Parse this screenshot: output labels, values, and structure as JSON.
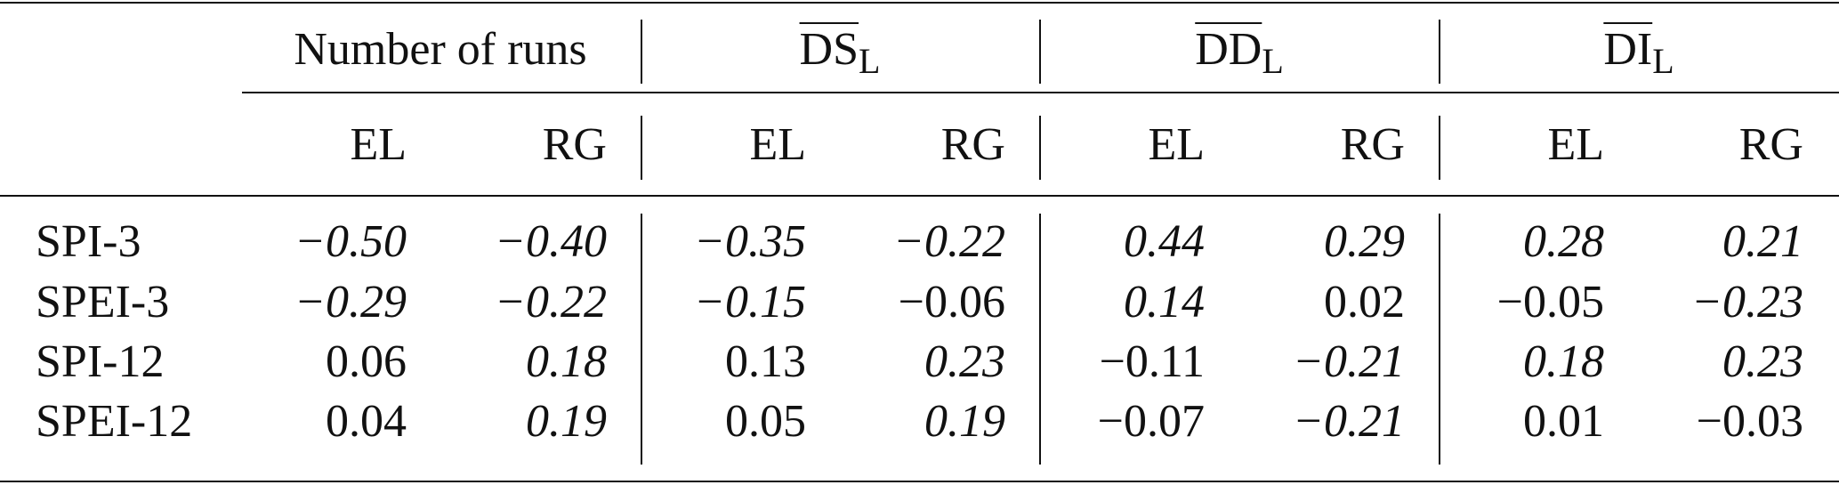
{
  "table": {
    "group_headers": [
      {
        "label": "Number of runs",
        "overline": false,
        "sub": ""
      },
      {
        "label": "DS",
        "overline": true,
        "sub": "L"
      },
      {
        "label": "DD",
        "overline": true,
        "sub": "L"
      },
      {
        "label": "DI",
        "overline": true,
        "sub": "L"
      }
    ],
    "sub_headers": [
      "EL",
      "RG",
      "EL",
      "RG",
      "EL",
      "RG",
      "EL",
      "RG"
    ],
    "rows": [
      {
        "label": "SPI-3",
        "values": [
          "−0.50",
          "−0.40",
          "−0.35",
          "−0.22",
          "0.44",
          "0.29",
          "0.28",
          "0.21"
        ],
        "italic": [
          true,
          true,
          true,
          true,
          true,
          true,
          true,
          true
        ]
      },
      {
        "label": "SPEI-3",
        "values": [
          "−0.29",
          "−0.22",
          "−0.15",
          "−0.06",
          "0.14",
          "0.02",
          "−0.05",
          "−0.23"
        ],
        "italic": [
          true,
          true,
          true,
          false,
          true,
          false,
          false,
          true
        ]
      },
      {
        "label": "SPI-12",
        "values": [
          "0.06",
          "0.18",
          "0.13",
          "0.23",
          "−0.11",
          "−0.21",
          "0.18",
          "0.23"
        ],
        "italic": [
          false,
          true,
          false,
          true,
          false,
          true,
          true,
          true
        ]
      },
      {
        "label": "SPEI-12",
        "values": [
          "0.04",
          "0.19",
          "0.05",
          "0.19",
          "−0.07",
          "−0.21",
          "0.01",
          "−0.03"
        ],
        "italic": [
          false,
          true,
          false,
          true,
          false,
          true,
          false,
          false
        ]
      }
    ]
  }
}
